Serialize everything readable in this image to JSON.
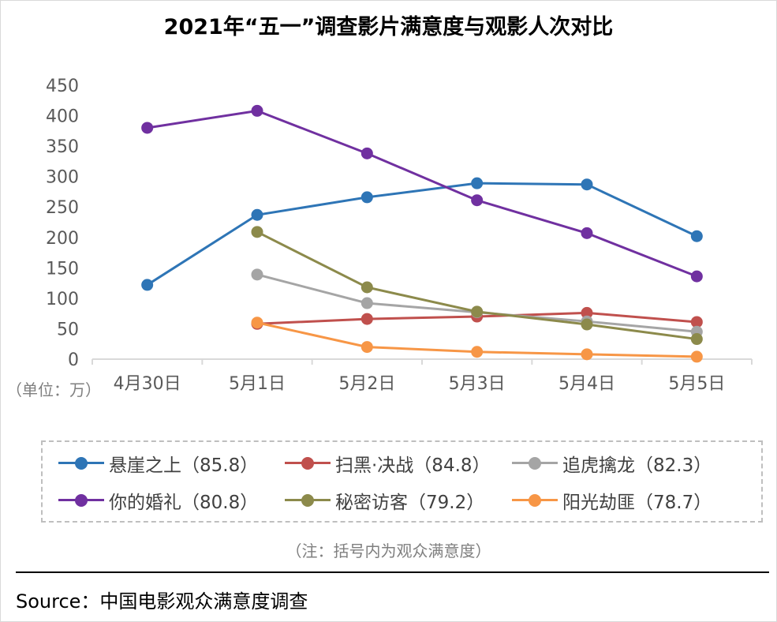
{
  "chart_data": {
    "type": "line",
    "title": "2021年“五一”调查影片满意度与观影人次对比",
    "unit_label": "（单位：万）",
    "categories": [
      "4月30日",
      "5月1日",
      "5月2日",
      "5月3日",
      "5月4日",
      "5月5日"
    ],
    "yticks": [
      "0",
      "50",
      "100",
      "150",
      "200",
      "250",
      "300",
      "350",
      "400",
      "450"
    ],
    "ylim": [
      0,
      450
    ],
    "series": [
      {
        "name": "悬崖之上（85.8）",
        "color": "#2e75b6",
        "values": [
          122,
          237,
          266,
          289,
          287,
          202
        ]
      },
      {
        "name": "扫黑·决战（84.8）",
        "color": "#c0504d",
        "values": [
          null,
          58,
          66,
          70,
          76,
          61
        ]
      },
      {
        "name": "追虎擒龙（82.3）",
        "color": "#a5a5a5",
        "values": [
          null,
          139,
          92,
          77,
          62,
          45
        ]
      },
      {
        "name": "你的婚礼（80.8）",
        "color": "#7030a0",
        "values": [
          380,
          408,
          338,
          261,
          207,
          136
        ]
      },
      {
        "name": "秘密访客（79.2）",
        "color": "#8c8a4b",
        "values": [
          null,
          209,
          118,
          78,
          57,
          33
        ]
      },
      {
        "name": "阳光劫匪（78.7）",
        "color": "#f79646",
        "values": [
          null,
          60,
          20,
          12,
          8,
          4
        ]
      }
    ],
    "note": "（注：括号内为观众满意度）",
    "source": "Source：中国电影观众满意度调查"
  }
}
